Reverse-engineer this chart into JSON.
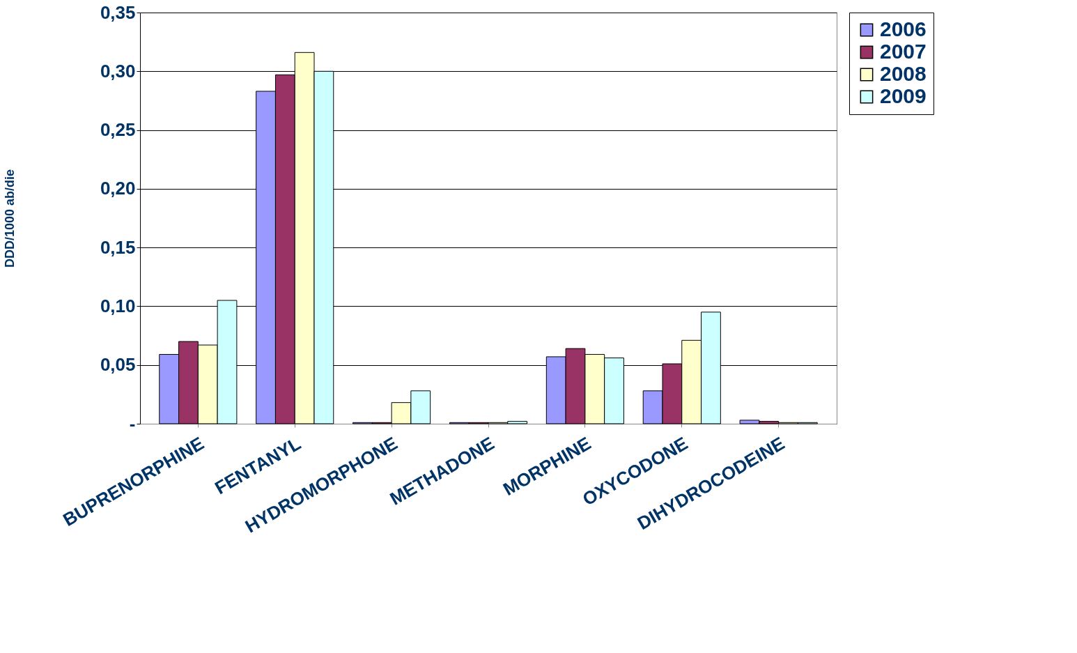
{
  "chart_data": {
    "type": "bar",
    "ylabel": "DDD/1000 ab/die",
    "categories": [
      "BUPRENORPHINE",
      "FENTANYL",
      "HYDROMORPHONE",
      "METHADONE",
      "MORPHINE",
      "OXYCODONE",
      "DIHYDROCODEINE"
    ],
    "series": [
      {
        "name": "2006",
        "color": "#9999ff",
        "values": [
          0.059,
          0.283,
          0.001,
          0.001,
          0.057,
          0.028,
          0.003
        ]
      },
      {
        "name": "2007",
        "color": "#993366",
        "values": [
          0.07,
          0.297,
          0.001,
          0.001,
          0.064,
          0.051,
          0.002
        ]
      },
      {
        "name": "2008",
        "color": "#ffffcc",
        "values": [
          0.067,
          0.316,
          0.018,
          0.001,
          0.059,
          0.071,
          0.001
        ]
      },
      {
        "name": "2009",
        "color": "#ccffff",
        "values": [
          0.105,
          0.3,
          0.028,
          0.002,
          0.056,
          0.095,
          0.001
        ]
      }
    ],
    "ylim": [
      0,
      0.35
    ],
    "yticks": [
      {
        "value": 0,
        "label": "-"
      },
      {
        "value": 0.05,
        "label": "0,05"
      },
      {
        "value": 0.1,
        "label": "0,10"
      },
      {
        "value": 0.15,
        "label": "0,15"
      },
      {
        "value": 0.2,
        "label": "0,20"
      },
      {
        "value": 0.25,
        "label": "0,25"
      },
      {
        "value": 0.3,
        "label": "0,30"
      },
      {
        "value": 0.35,
        "label": "0,35"
      }
    ],
    "grid": "y",
    "legend": "right"
  }
}
